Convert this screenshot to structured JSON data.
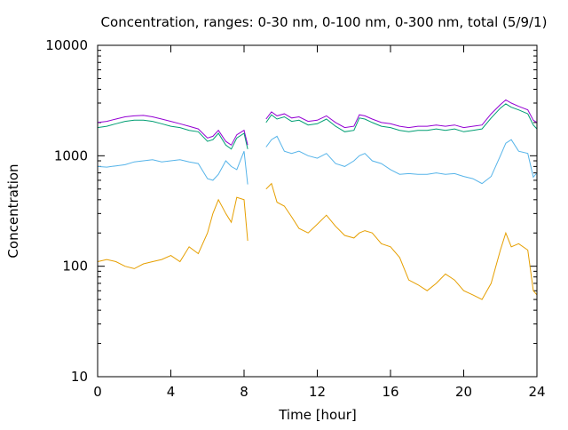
{
  "chart_data": {
    "type": "line",
    "title": "Concentration, ranges: 0-30 nm, 0-100 nm, 0-300 nm, total (5/9/1)",
    "xlabel": "Time [hour]",
    "ylabel": "Concentration",
    "xlim": [
      0,
      24
    ],
    "ylim": [
      10,
      10000
    ],
    "yscale": "log",
    "grid": false,
    "xticks": [
      0,
      4,
      8,
      12,
      16,
      20,
      24
    ],
    "yticks": [
      10,
      100,
      1000,
      10000
    ],
    "xtick_labels": [
      "0",
      "4",
      "8",
      "12",
      "16",
      "20",
      "24"
    ],
    "ytick_labels": [
      "10",
      "100",
      "1000",
      "10000"
    ],
    "gap": [
      8.3,
      9.0
    ],
    "series": [
      {
        "color": "#9400d3",
        "x": [
          0,
          0.5,
          1,
          1.5,
          2,
          2.5,
          3,
          3.5,
          4,
          4.5,
          5,
          5.5,
          6,
          6.3,
          6.6,
          7,
          7.3,
          7.6,
          8,
          8.2,
          9.2,
          9.5,
          9.8,
          10.2,
          10.6,
          11,
          11.5,
          12,
          12.5,
          13,
          13.5,
          14,
          14.3,
          14.6,
          15,
          15.5,
          16,
          16.5,
          17,
          17.5,
          18,
          18.5,
          19,
          19.5,
          20,
          20.5,
          21,
          21.5,
          22,
          22.3,
          22.6,
          23,
          23.5,
          23.8,
          24
        ],
        "y": [
          2000,
          2050,
          2150,
          2250,
          2300,
          2320,
          2250,
          2150,
          2050,
          1950,
          1850,
          1750,
          1450,
          1500,
          1700,
          1350,
          1250,
          1550,
          1700,
          1250,
          2150,
          2500,
          2300,
          2400,
          2200,
          2250,
          2050,
          2100,
          2300,
          2000,
          1800,
          1850,
          2350,
          2300,
          2150,
          2000,
          1950,
          1850,
          1800,
          1850,
          1850,
          1900,
          1850,
          1900,
          1800,
          1850,
          1900,
          2400,
          2900,
          3200,
          3000,
          2800,
          2600,
          2100,
          2000
        ]
      },
      {
        "color": "#009e73",
        "x": [
          0,
          0.5,
          1,
          1.5,
          2,
          2.5,
          3,
          3.5,
          4,
          4.5,
          5,
          5.5,
          6,
          6.3,
          6.6,
          7,
          7.3,
          7.6,
          8,
          8.2,
          9.2,
          9.5,
          9.8,
          10.2,
          10.6,
          11,
          11.5,
          12,
          12.5,
          13,
          13.5,
          14,
          14.3,
          14.6,
          15,
          15.5,
          16,
          16.5,
          17,
          17.5,
          18,
          18.5,
          19,
          19.5,
          20,
          20.5,
          21,
          21.5,
          22,
          22.3,
          22.6,
          23,
          23.5,
          23.8,
          24
        ],
        "y": [
          1800,
          1850,
          1950,
          2050,
          2100,
          2100,
          2050,
          1950,
          1850,
          1800,
          1700,
          1650,
          1350,
          1400,
          1600,
          1250,
          1150,
          1450,
          1600,
          1150,
          2000,
          2350,
          2150,
          2250,
          2050,
          2100,
          1900,
          1950,
          2150,
          1850,
          1650,
          1700,
          2200,
          2150,
          2000,
          1850,
          1800,
          1700,
          1650,
          1700,
          1700,
          1750,
          1700,
          1750,
          1650,
          1700,
          1750,
          2200,
          2700,
          2950,
          2750,
          2600,
          2400,
          1900,
          1750
        ]
      },
      {
        "color": "#56b4e9",
        "x": [
          0,
          0.5,
          1,
          1.5,
          2,
          2.5,
          3,
          3.5,
          4,
          4.5,
          5,
          5.5,
          6,
          6.3,
          6.6,
          7,
          7.3,
          7.6,
          8,
          8.2,
          9.2,
          9.5,
          9.8,
          10.2,
          10.6,
          11,
          11.5,
          12,
          12.5,
          13,
          13.5,
          14,
          14.3,
          14.6,
          15,
          15.5,
          16,
          16.5,
          17,
          17.5,
          18,
          18.5,
          19,
          19.5,
          20,
          20.5,
          21,
          21.5,
          22,
          22.3,
          22.6,
          23,
          23.5,
          23.8,
          24
        ],
        "y": [
          800,
          790,
          810,
          830,
          880,
          900,
          920,
          880,
          900,
          920,
          880,
          850,
          620,
          600,
          680,
          900,
          800,
          750,
          1100,
          550,
          1200,
          1400,
          1500,
          1100,
          1050,
          1100,
          1000,
          950,
          1050,
          850,
          800,
          900,
          1000,
          1050,
          900,
          850,
          750,
          680,
          690,
          680,
          680,
          700,
          680,
          690,
          650,
          620,
          560,
          650,
          1000,
          1300,
          1400,
          1100,
          1050,
          640,
          700
        ]
      },
      {
        "color": "#e69f00",
        "x": [
          0,
          0.5,
          1,
          1.5,
          2,
          2.5,
          3,
          3.5,
          4,
          4.5,
          5,
          5.5,
          6,
          6.3,
          6.6,
          7,
          7.3,
          7.6,
          8,
          8.2,
          9.2,
          9.5,
          9.8,
          10.2,
          10.6,
          11,
          11.5,
          12,
          12.5,
          13,
          13.5,
          14,
          14.3,
          14.6,
          15,
          15.5,
          16,
          16.5,
          17,
          17.5,
          18,
          18.5,
          19,
          19.5,
          20,
          20.5,
          21,
          21.5,
          22,
          22.3,
          22.6,
          23,
          23.5,
          23.8,
          24
        ],
        "y": [
          110,
          115,
          110,
          100,
          95,
          105,
          110,
          115,
          125,
          110,
          150,
          130,
          200,
          300,
          400,
          300,
          250,
          420,
          400,
          170,
          500,
          560,
          380,
          350,
          280,
          220,
          200,
          240,
          290,
          230,
          190,
          180,
          200,
          210,
          200,
          160,
          150,
          120,
          75,
          68,
          60,
          70,
          85,
          75,
          60,
          55,
          50,
          70,
          140,
          200,
          150,
          160,
          140,
          60,
          55
        ]
      }
    ]
  }
}
